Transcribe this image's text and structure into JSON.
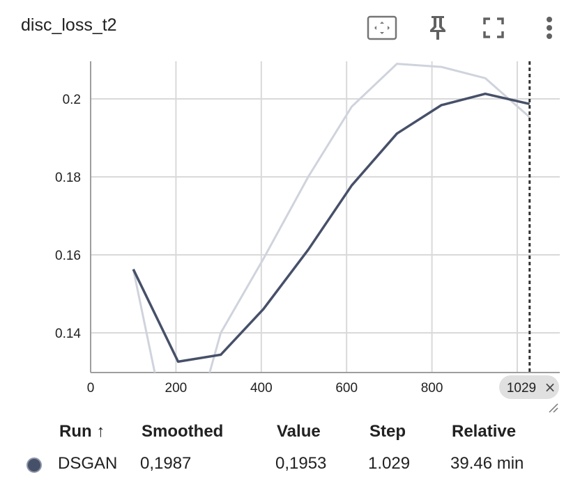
{
  "header": {
    "title": "disc_loss_t2",
    "icons": [
      "fit-domain-icon",
      "pin-icon",
      "fullscreen-icon",
      "more-vert-icon"
    ]
  },
  "colors": {
    "smoothed_line": "#475069",
    "raw_line": "#cfd3dc",
    "grid": "#d9d9d9",
    "hover_line": "#333333",
    "badge_bg": "#e0e0e0"
  },
  "chart_data": {
    "type": "line",
    "title": "disc_loss_t2",
    "xlabel": "",
    "ylabel": "",
    "xlim": [
      0,
      1100
    ],
    "ylim": [
      0.13,
      0.21
    ],
    "xticks": [
      "0",
      "200",
      "400",
      "600",
      "800"
    ],
    "yticks": [
      "0.14",
      "0.16",
      "0.18",
      "0.2"
    ],
    "grid": true,
    "series": [
      {
        "name": "DSGAN",
        "role": "smoothed",
        "x": [
          100,
          205,
          305,
          405,
          510,
          612,
          718,
          822,
          925,
          1029
        ],
        "y": [
          0.1563,
          0.1326,
          0.1344,
          0.1461,
          0.1613,
          0.1778,
          0.1911,
          0.1984,
          0.2013,
          0.1987
        ]
      },
      {
        "name": "DSGAN",
        "role": "raw",
        "x": [
          100,
          205,
          305,
          405,
          510,
          612,
          718,
          822,
          925,
          1029
        ],
        "y": [
          0.1563,
          0.101,
          0.14,
          0.159,
          0.18,
          0.198,
          0.209,
          0.2082,
          0.2053,
          0.1953
        ]
      }
    ],
    "hover": {
      "step": 1029,
      "label": "1029"
    }
  },
  "table": {
    "headers": {
      "run": "Run ↑",
      "smoothed": "Smoothed",
      "value": "Value",
      "step": "Step",
      "relative": "Relative"
    },
    "rows": [
      {
        "run": "DSGAN",
        "smoothed": "0,1987",
        "value": "0,1953",
        "step": "1.029",
        "relative": "39.46 min",
        "color": "#475069"
      }
    ]
  }
}
